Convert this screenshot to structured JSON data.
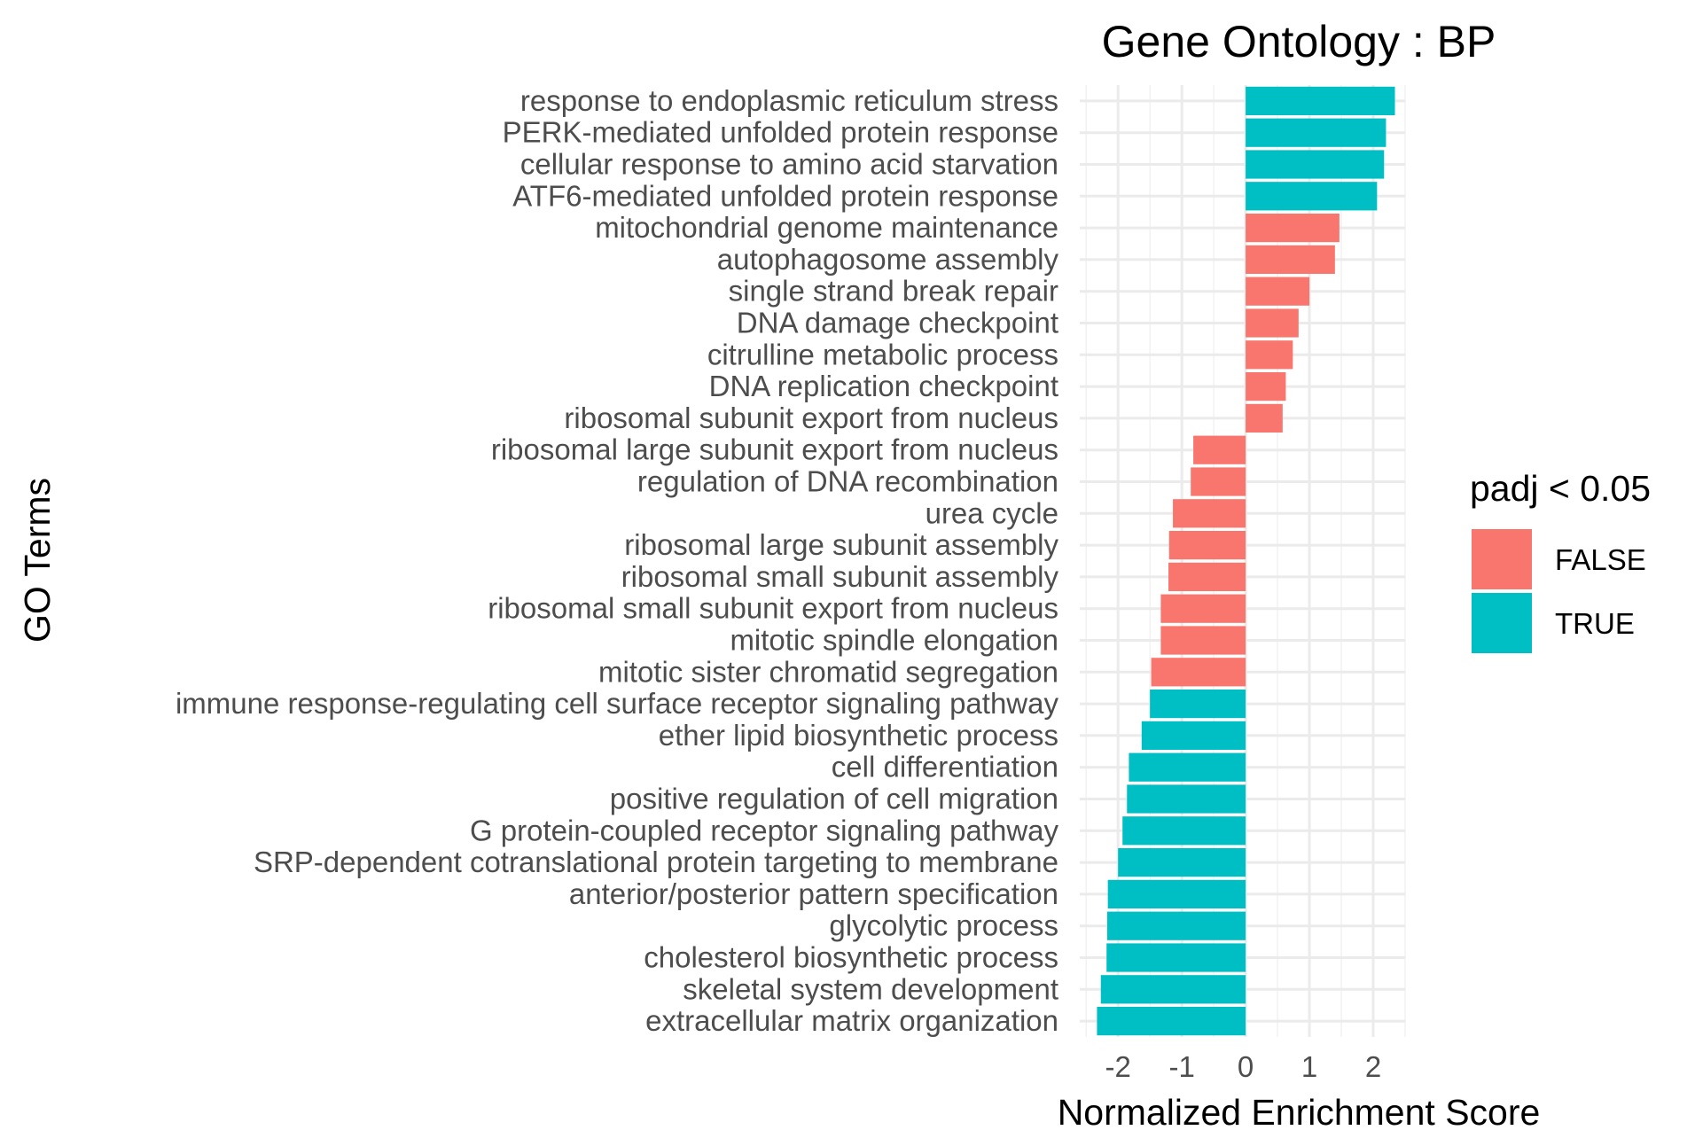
{
  "chart_data": {
    "type": "bar",
    "orientation": "horizontal",
    "title": "Gene Ontology : BP",
    "xlabel": "Normalized Enrichment Score",
    "ylabel": "GO Terms",
    "xlim": [
      -2.6,
      2.5
    ],
    "xticks": [
      -2,
      -1,
      0,
      1,
      2
    ],
    "xtick_labels": [
      "-2",
      "-1",
      "0",
      "1",
      "2"
    ],
    "grid": true,
    "legend": {
      "title": "padj < 0.05",
      "placement": "right",
      "entries": [
        {
          "label": "FALSE",
          "color": "#F8766D"
        },
        {
          "label": "TRUE",
          "color": "#00BFC4"
        }
      ]
    },
    "bars": [
      {
        "term": "response to endoplasmic reticulum stress",
        "nes": 2.34,
        "padj_sig": "TRUE"
      },
      {
        "term": "PERK-mediated unfolded protein response",
        "nes": 2.2,
        "padj_sig": "TRUE"
      },
      {
        "term": "cellular response to amino acid starvation",
        "nes": 2.17,
        "padj_sig": "TRUE"
      },
      {
        "term": "ATF6-mediated unfolded protein response",
        "nes": 2.06,
        "padj_sig": "TRUE"
      },
      {
        "term": "mitochondrial genome maintenance",
        "nes": 1.47,
        "padj_sig": "FALSE"
      },
      {
        "term": "autophagosome assembly",
        "nes": 1.4,
        "padj_sig": "FALSE"
      },
      {
        "term": "single strand break repair",
        "nes": 1.0,
        "padj_sig": "FALSE"
      },
      {
        "term": "DNA damage checkpoint",
        "nes": 0.83,
        "padj_sig": "FALSE"
      },
      {
        "term": "citrulline metabolic process",
        "nes": 0.74,
        "padj_sig": "FALSE"
      },
      {
        "term": "DNA replication checkpoint",
        "nes": 0.63,
        "padj_sig": "FALSE"
      },
      {
        "term": "ribosomal subunit export from nucleus",
        "nes": 0.58,
        "padj_sig": "FALSE"
      },
      {
        "term": "ribosomal large subunit export from nucleus",
        "nes": -0.82,
        "padj_sig": "FALSE"
      },
      {
        "term": "regulation of DNA recombination",
        "nes": -0.86,
        "padj_sig": "FALSE"
      },
      {
        "term": "urea cycle",
        "nes": -1.14,
        "padj_sig": "FALSE"
      },
      {
        "term": "ribosomal large subunit assembly",
        "nes": -1.2,
        "padj_sig": "FALSE"
      },
      {
        "term": "ribosomal small subunit assembly",
        "nes": -1.21,
        "padj_sig": "FALSE"
      },
      {
        "term": "ribosomal small subunit export from nucleus",
        "nes": -1.33,
        "padj_sig": "FALSE"
      },
      {
        "term": "mitotic spindle elongation",
        "nes": -1.33,
        "padj_sig": "FALSE"
      },
      {
        "term": "mitotic sister chromatid segregation",
        "nes": -1.48,
        "padj_sig": "FALSE"
      },
      {
        "term": "immune response-regulating cell surface receptor signaling pathway",
        "nes": -1.5,
        "padj_sig": "TRUE"
      },
      {
        "term": "ether lipid biosynthetic process",
        "nes": -1.63,
        "padj_sig": "TRUE"
      },
      {
        "term": "cell differentiation",
        "nes": -1.83,
        "padj_sig": "TRUE"
      },
      {
        "term": "positive regulation of cell migration",
        "nes": -1.86,
        "padj_sig": "TRUE"
      },
      {
        "term": "G protein-coupled receptor signaling pathway",
        "nes": -1.93,
        "padj_sig": "TRUE"
      },
      {
        "term": "SRP-dependent cotranslational protein targeting to membrane",
        "nes": -2.0,
        "padj_sig": "TRUE"
      },
      {
        "term": "anterior/posterior pattern specification",
        "nes": -2.16,
        "padj_sig": "TRUE"
      },
      {
        "term": "glycolytic process",
        "nes": -2.17,
        "padj_sig": "TRUE"
      },
      {
        "term": "cholesterol biosynthetic process",
        "nes": -2.18,
        "padj_sig": "TRUE"
      },
      {
        "term": "skeletal system development",
        "nes": -2.27,
        "padj_sig": "TRUE"
      },
      {
        "term": "extracellular matrix organization",
        "nes": -2.33,
        "padj_sig": "TRUE"
      }
    ]
  }
}
